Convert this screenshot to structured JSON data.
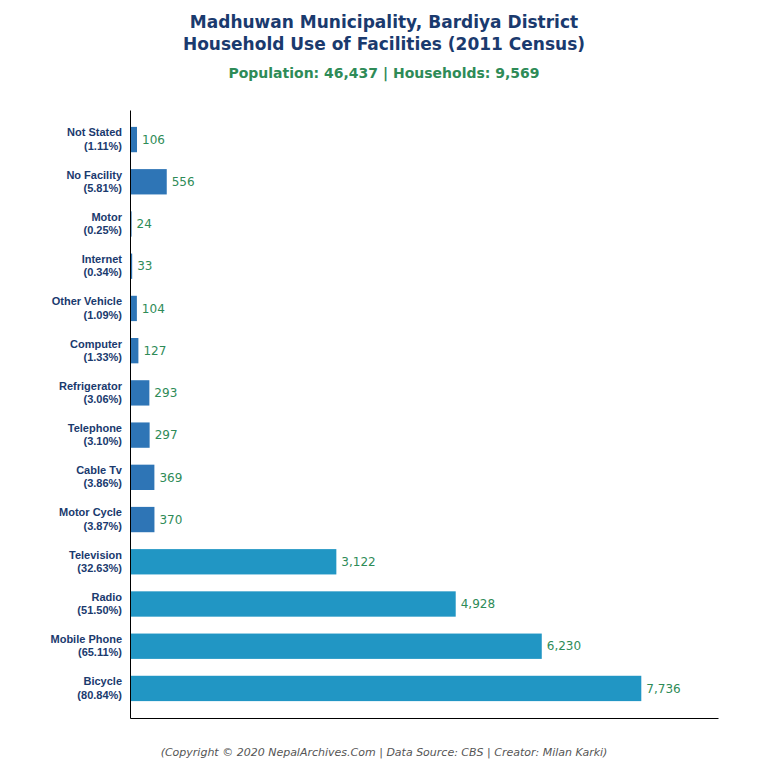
{
  "chart_data": {
    "type": "bar",
    "orientation": "horizontal",
    "title": "Madhuwan Municipality, Bardiya District\nHousehold Use of Facilities (2011 Census)",
    "subtitle": "Population: 46,437 | Households: 9,569",
    "footer": "(Copyright © 2020 NepalArchives.Com | Data Source: CBS | Creator: Milan Karki)",
    "categories": [
      "Bicycle\n(80.84%)",
      "Mobile Phone\n(65.11%)",
      "Radio\n(51.50%)",
      "Television\n(32.63%)",
      "Motor Cycle\n(3.87%)",
      "Cable Tv\n(3.86%)",
      "Telephone\n(3.10%)",
      "Refrigerator\n(3.06%)",
      "Computer\n(1.33%)",
      "Other Vehicle\n(1.09%)",
      "Internet\n(0.34%)",
      "Motor\n(0.25%)",
      "No Facility\n(5.81%)",
      "Not Stated\n(1.11%)"
    ],
    "values": [
      7736,
      6230,
      4928,
      3122,
      370,
      369,
      297,
      293,
      127,
      104,
      33,
      24,
      556,
      106
    ],
    "value_labels": [
      "7,736",
      "6,230",
      "4,928",
      "3,122",
      "370",
      "369",
      "297",
      "293",
      "127",
      "104",
      "33",
      "24",
      "556",
      "106"
    ],
    "colors": [
      "#2196c4",
      "#2196c4",
      "#2196c4",
      "#2196c4",
      "#2e75b6",
      "#2e75b6",
      "#2e75b6",
      "#2e75b6",
      "#2e75b6",
      "#2e75b6",
      "#2e75b6",
      "#2e75b6",
      "#2e75b6",
      "#2e75b6"
    ],
    "xlim": [
      0,
      8896.4
    ],
    "data_labels": true,
    "tick_labels": "y",
    "grid": false
  }
}
